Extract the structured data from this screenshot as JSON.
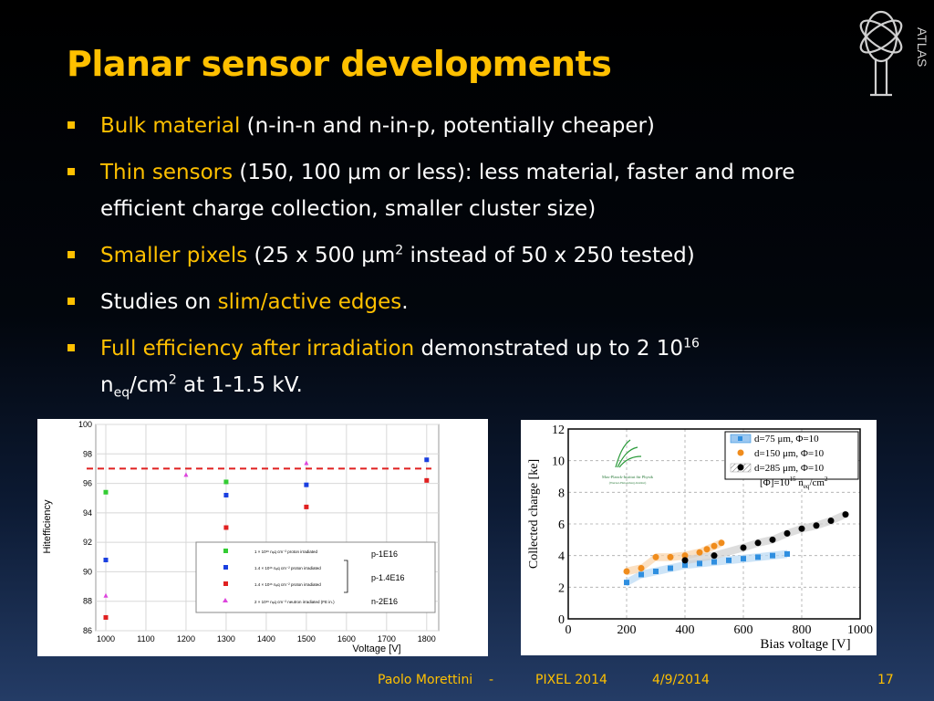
{
  "slide": {
    "title": "Planar sensor developments",
    "logo_text": "ATLAS",
    "bullets": [
      {
        "highlight": "Bulk material",
        "rest": " (n-in-n and n-in-p, potentially cheaper)"
      },
      {
        "highlight": "Thin sensors",
        "rest": " (150, 100 μm or less): less material, faster and more efficient charge collection, smaller cluster size)"
      },
      {
        "highlight": "Smaller pixels",
        "rest_a": " (25 x 500 μm",
        "rest_sup": "2",
        "rest_b": " instead of 50 x 250 tested)"
      },
      {
        "pre": "Studies on ",
        "highlight": "slim/active edges",
        "post": "."
      },
      {
        "highlight": "Full efficiency after irradiation",
        "rest": " demonstrated up to 2 10",
        "sup": "16",
        "line2_a": "n",
        "line2_sub": "eq",
        "line2_b": "/cm",
        "line2_sup": "2",
        "line2_c": " at 1-1.5 kV."
      }
    ],
    "footer": {
      "author": "Paolo Morettini",
      "sep": "-",
      "event": "PIXEL 2014",
      "date": "4/9/2014",
      "page": "17"
    },
    "colors": {
      "accent": "#ffc000",
      "text": "#ffffff",
      "background": "#000000"
    }
  },
  "chart_data": [
    {
      "type": "scatter",
      "xlabel": "Voltage [V]",
      "ylabel": "Hitefficiency",
      "xlim": [
        975,
        1830
      ],
      "ylim": [
        86,
        100
      ],
      "xticks": [
        1000,
        1100,
        1200,
        1300,
        1400,
        1500,
        1600,
        1700,
        1800
      ],
      "yticks": [
        86,
        88,
        90,
        92,
        94,
        96,
        98,
        100
      ],
      "reference_line": {
        "y": 97,
        "style": "dashed",
        "color": "#e02020"
      },
      "series": [
        {
          "name": "1 × 10¹⁶ nₑq cm⁻² proton irradiated",
          "color": "#33cc33",
          "marker": "square",
          "points": [
            [
              1000,
              95.4
            ],
            [
              1300,
              96.1
            ]
          ]
        },
        {
          "name": "1.4 × 10¹⁶ nₑq cm⁻² proton irradiated",
          "color": "#1a3fe0",
          "marker": "square",
          "points": [
            [
              1000,
              90.8
            ],
            [
              1300,
              95.2
            ],
            [
              1500,
              95.9
            ],
            [
              1800,
              97.6
            ]
          ]
        },
        {
          "name": "1.4 × 10¹⁶ nₑq cm⁻² proton irradiated",
          "color": "#e02020",
          "marker": "square",
          "points": [
            [
              1000,
              86.9
            ],
            [
              1300,
              93.0
            ],
            [
              1500,
              94.4
            ],
            [
              1800,
              96.2
            ]
          ]
        },
        {
          "name": "2 × 10¹⁶ nₑq cm⁻² neutron irradiated (FE in.)",
          "color": "#dd44dd",
          "marker": "triangle",
          "points": [
            [
              1000,
              88.4
            ],
            [
              1200,
              96.6
            ],
            [
              1500,
              97.4
            ]
          ]
        }
      ],
      "annotations": [
        "p-1E16",
        "p-1.4E16",
        "n-2E16"
      ]
    },
    {
      "type": "scatter",
      "xlabel": "Bias voltage [V]",
      "ylabel": "Collected charge [ke]",
      "xlim": [
        0,
        1000
      ],
      "ylim": [
        0,
        12
      ],
      "xticks": [
        0,
        200,
        400,
        600,
        800,
        1000
      ],
      "yticks": [
        0,
        2,
        4,
        6,
        8,
        10,
        12
      ],
      "legend_position": "top-right",
      "logo_text": [
        "Max-Planck-Institut für Physik",
        "(Werner-Heisenberg-Institut)"
      ],
      "fluence_label": {
        "a": "[Φ]=10",
        "sup": "15",
        "b": " n",
        "sub": "eq",
        "c": "/cm",
        "sup2": "2"
      },
      "series": [
        {
          "name": "d=75   μm, Φ=10",
          "color": "#2f8fe0",
          "marker": "square",
          "points": [
            [
              200,
              2.3
            ],
            [
              250,
              2.8
            ],
            [
              300,
              3.0
            ],
            [
              350,
              3.2
            ],
            [
              400,
              3.4
            ],
            [
              450,
              3.5
            ],
            [
              500,
              3.6
            ],
            [
              550,
              3.7
            ],
            [
              600,
              3.8
            ],
            [
              650,
              3.9
            ],
            [
              700,
              4.0
            ],
            [
              750,
              4.1
            ]
          ]
        },
        {
          "name": "d=150  μm, Φ=10",
          "color": "#f08c1c",
          "marker": "circle",
          "points": [
            [
              200,
              3.0
            ],
            [
              250,
              3.2
            ],
            [
              300,
              3.9
            ],
            [
              350,
              3.9
            ],
            [
              400,
              4.0
            ],
            [
              450,
              4.2
            ],
            [
              475,
              4.4
            ],
            [
              500,
              4.6
            ],
            [
              525,
              4.8
            ]
          ]
        },
        {
          "name": "d=285  μm, Φ=10",
          "color": "#000000",
          "marker": "circle",
          "points": [
            [
              400,
              3.7
            ],
            [
              500,
              4.0
            ],
            [
              600,
              4.5
            ],
            [
              650,
              4.8
            ],
            [
              700,
              5.0
            ],
            [
              750,
              5.4
            ],
            [
              800,
              5.7
            ],
            [
              850,
              5.9
            ],
            [
              900,
              6.2
            ],
            [
              950,
              6.6
            ]
          ]
        }
      ]
    }
  ]
}
